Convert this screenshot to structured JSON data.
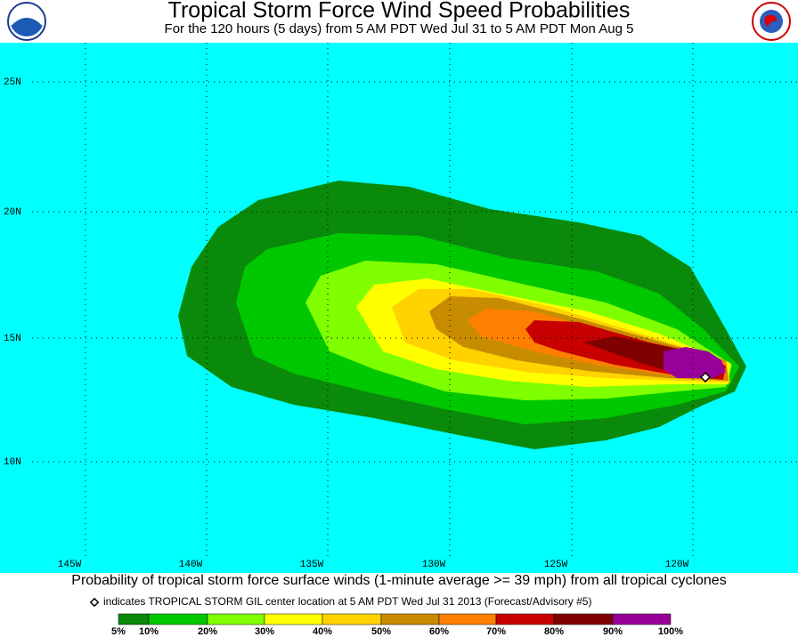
{
  "header": {
    "title": "Tropical Storm Force Wind Speed Probabilities",
    "subtitle": "For the 120 hours (5 days) from 5 AM PDT Wed Jul 31 to 5 AM PDT Mon Aug 5"
  },
  "map": {
    "lat_labels": [
      "25N",
      "20N",
      "15N",
      "10N"
    ],
    "lon_labels": [
      "145W",
      "140W",
      "135W",
      "130W",
      "125W",
      "120W"
    ]
  },
  "footer": {
    "description": "Probability of tropical storm force surface winds (1-minute average >= 39 mph) from all tropical cyclones",
    "marker_note": "indicates TROPICAL STORM GIL center location at 5 AM PDT Wed Jul 31 2013 (Forecast/Advisory #5)"
  },
  "legend": {
    "labels": [
      "5%",
      "10%",
      "20%",
      "30%",
      "40%",
      "50%",
      "60%",
      "70%",
      "80%",
      "90%",
      "100%"
    ]
  }
}
